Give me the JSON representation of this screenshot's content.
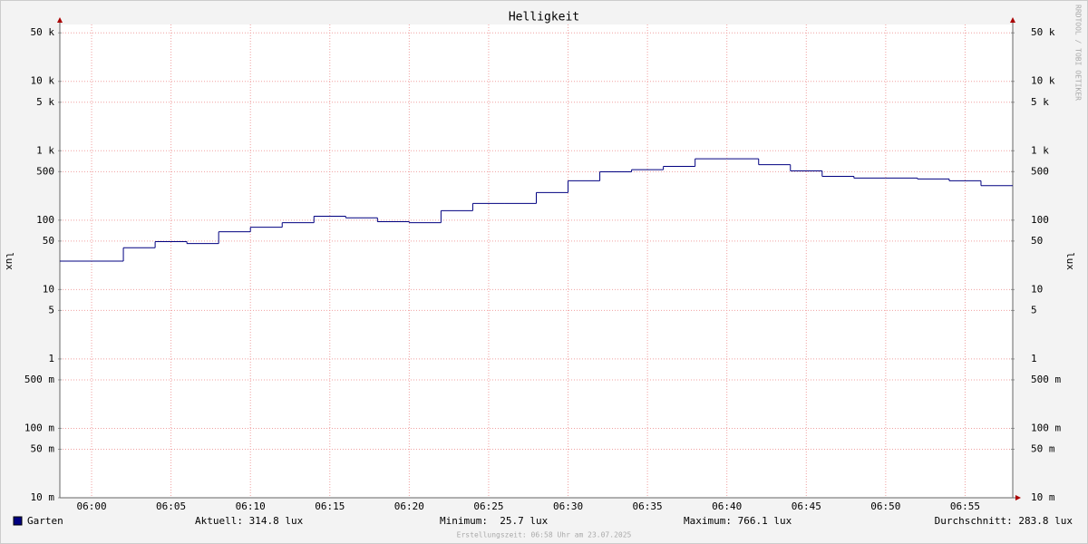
{
  "chart_data": {
    "type": "line",
    "step": true,
    "title": "Helligkeit",
    "y_label": "lux",
    "watermark": "RRDTOOL / TOBI OETIKER",
    "footer": "Erstellungszeit: 06:58 Uhr am 23.07.2025",
    "log_y": true,
    "grid": true,
    "x": [
      "05:58",
      "06:00",
      "06:02",
      "06:04",
      "06:06",
      "06:08",
      "06:10",
      "06:12",
      "06:14",
      "06:16",
      "06:18",
      "06:20",
      "06:22",
      "06:24",
      "06:26",
      "06:28",
      "06:30",
      "06:32",
      "06:34",
      "06:36",
      "06:38",
      "06:40",
      "06:42",
      "06:44",
      "06:46",
      "06:48",
      "06:50",
      "06:52",
      "06:54",
      "06:56"
    ],
    "xlim": [
      "05:58",
      "06:58"
    ],
    "xticks": [
      "06:00",
      "06:05",
      "06:10",
      "06:15",
      "06:20",
      "06:25",
      "06:30",
      "06:35",
      "06:40",
      "06:45",
      "06:50",
      "06:55"
    ],
    "ylim": [
      0.01,
      66000
    ],
    "yticks": [
      {
        "value": 50000,
        "label": "50 k"
      },
      {
        "value": 10000,
        "label": "10 k"
      },
      {
        "value": 5000,
        "label": "5 k"
      },
      {
        "value": 1000,
        "label": "1 k"
      },
      500,
      100,
      50,
      10,
      5,
      1,
      {
        "value": 0.5,
        "label": "500 m"
      },
      {
        "value": 0.1,
        "label": "100 m"
      },
      {
        "value": 0.05,
        "label": "50 m"
      },
      {
        "value": 0.01,
        "label": "10 m"
      }
    ],
    "series": [
      {
        "name": "Garten",
        "color": "#000080",
        "values": [
          25.7,
          25.7,
          40,
          49,
          46,
          68,
          79,
          92,
          114,
          108,
          95,
          92,
          137,
          174,
          174,
          250,
          369,
          498,
          535,
          596,
          766.1,
          766.1,
          630,
          513,
          428,
          404,
          404,
          392,
          369,
          314.8
        ]
      }
    ],
    "stats": [
      "Aktuell: 314.8 lux",
      "Minimum:  25.7 lux",
      "Maximum: 766.1 lux",
      "Durchschnitt: 283.8 lux"
    ]
  }
}
